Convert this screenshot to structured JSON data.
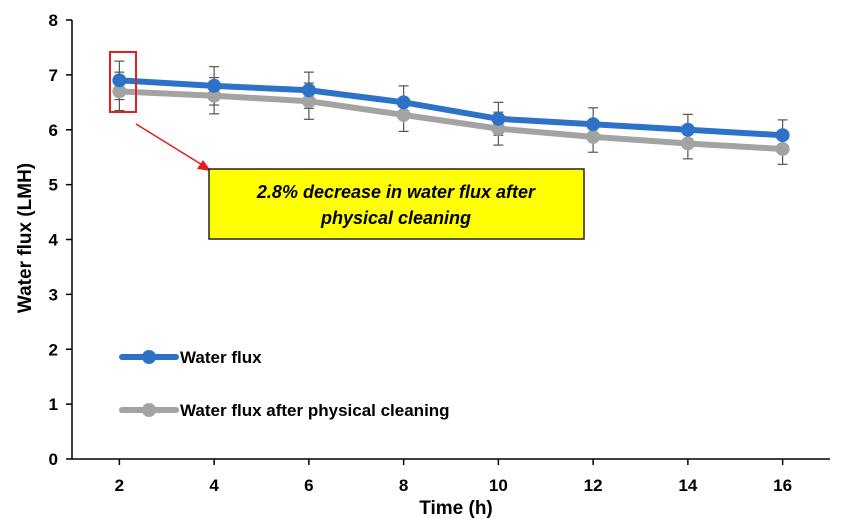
{
  "chart_data": {
    "type": "line",
    "title": "",
    "xlabel": "Time (h)",
    "ylabel": "Water flux (LMH)",
    "x": [
      2,
      4,
      6,
      8,
      10,
      12,
      14,
      16
    ],
    "xlim": [
      1,
      17
    ],
    "ylim": [
      0,
      8
    ],
    "yticks": [
      0,
      1,
      2,
      3,
      4,
      5,
      6,
      7,
      8
    ],
    "grid": false,
    "legend_position": "bottom-left",
    "series": [
      {
        "name": "Water flux",
        "color": "#2e72c8",
        "values": [
          6.9,
          6.8,
          6.72,
          6.5,
          6.2,
          6.1,
          6.0,
          5.9
        ],
        "error": [
          0.35,
          0.35,
          0.33,
          0.3,
          0.3,
          0.3,
          0.28,
          0.28
        ]
      },
      {
        "name": "Water flux after physical cleaning",
        "color": "#a3a3a3",
        "values": [
          6.7,
          6.62,
          6.52,
          6.27,
          6.02,
          5.87,
          5.75,
          5.65
        ],
        "error": [
          0.35,
          0.33,
          0.33,
          0.3,
          0.3,
          0.28,
          0.28,
          0.28
        ]
      }
    ],
    "annotation": {
      "line1": "2.8% decrease in water flux after",
      "line2": "physical cleaning",
      "box_color": "#ffff00",
      "highlight_color": "#e02020",
      "target_x": 2
    }
  }
}
